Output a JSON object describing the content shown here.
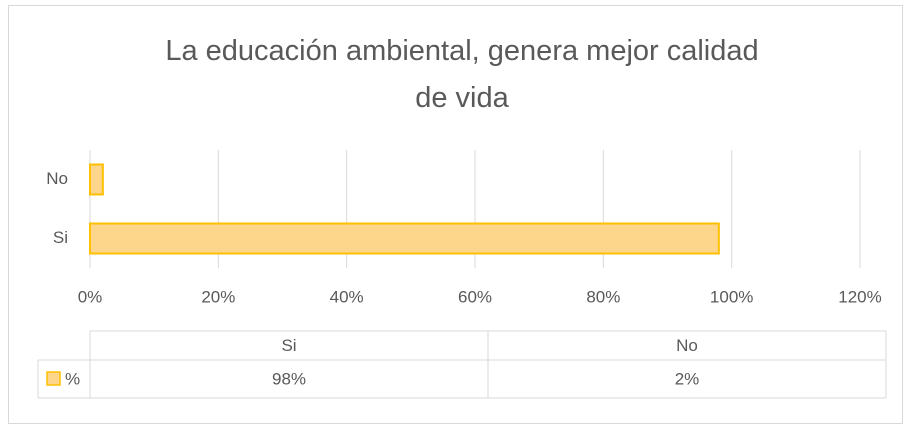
{
  "chart_data": {
    "type": "bar",
    "orientation": "horizontal",
    "title": "La educación ambiental, genera mejor calidad de vida",
    "categories": [
      "Si",
      "No"
    ],
    "series": [
      {
        "name": "%",
        "color": "#fdd58b",
        "values": [
          98,
          2
        ],
        "value_labels": [
          "98%",
          "2%"
        ]
      }
    ],
    "xlim": [
      0,
      120
    ],
    "xticks": [
      {
        "value": 0,
        "label": "0%"
      },
      {
        "value": 20,
        "label": "20%"
      },
      {
        "value": 40,
        "label": "40%"
      },
      {
        "value": 60,
        "label": "60%"
      },
      {
        "value": 80,
        "label": "80%"
      },
      {
        "value": 100,
        "label": "100%"
      },
      {
        "value": 120,
        "label": "120%"
      }
    ],
    "grid": true
  }
}
